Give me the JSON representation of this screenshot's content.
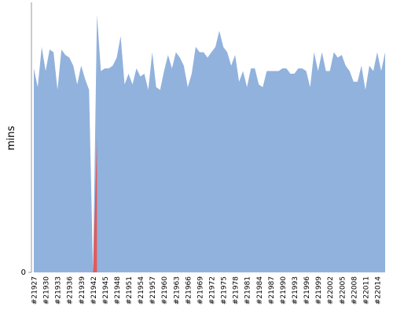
{
  "chart_data": {
    "type": "area",
    "y_label": "mins",
    "categories": [
      "#21927",
      null,
      null,
      "#21930",
      null,
      null,
      "#21933",
      null,
      null,
      "#21936",
      null,
      null,
      "#21939",
      null,
      null,
      "#21942",
      null,
      null,
      "#21945",
      null,
      null,
      "#21948",
      null,
      null,
      "#21951",
      null,
      null,
      "#21954",
      null,
      null,
      "#21957",
      null,
      null,
      "#21960",
      null,
      null,
      "#21963",
      null,
      null,
      "#21966",
      null,
      null,
      "#21969",
      null,
      null,
      "#21972",
      null,
      null,
      "#21975",
      null,
      null,
      "#21978",
      null,
      null,
      "#21981",
      null,
      null,
      "#21984",
      null,
      null,
      "#21987",
      null,
      null,
      "#21990",
      null,
      null,
      "#21993",
      null,
      null,
      "#21996",
      null,
      null,
      "#21999",
      null,
      null,
      "#22002",
      null,
      null,
      "#22005",
      null,
      null,
      "#22008",
      null,
      null,
      "#22011",
      null,
      null,
      "#22014",
      null,
      null
    ],
    "series": [
      {
        "color": "#91b2dc",
        "values": [
          76,
          69,
          84,
          75,
          83,
          82,
          68,
          83,
          81,
          80,
          77,
          70,
          77,
          72,
          68,
          0,
          96,
          75,
          76,
          76,
          77,
          80,
          88,
          70,
          74,
          70,
          76,
          73,
          74,
          68,
          82,
          69,
          68,
          75,
          81,
          76,
          82,
          80,
          77,
          69,
          74,
          84,
          82,
          82,
          80,
          82,
          84,
          90,
          84,
          82,
          77,
          81,
          71,
          75,
          69,
          76,
          76,
          70,
          69,
          75,
          75,
          75,
          75,
          76,
          76,
          74,
          74,
          76,
          76,
          75,
          69,
          82,
          75,
          82,
          75,
          75,
          82,
          80,
          81,
          77,
          75,
          71,
          71,
          77,
          68,
          77,
          75,
          82,
          75,
          82
        ]
      },
      {
        "color": "#e35a5a",
        "values": [
          null,
          null,
          null,
          null,
          null,
          null,
          null,
          null,
          null,
          null,
          null,
          null,
          null,
          null,
          null,
          0,
          50,
          null,
          null,
          null,
          null,
          null,
          null,
          null,
          null,
          null,
          null,
          null,
          null,
          null,
          null,
          null,
          null,
          null,
          null,
          null,
          null,
          null,
          null,
          null,
          null,
          null,
          null,
          null,
          null,
          null,
          null,
          null,
          null,
          null,
          null,
          null,
          null,
          null,
          null,
          null,
          null,
          null,
          null,
          null,
          null,
          null,
          null,
          null,
          null,
          null,
          null,
          null,
          null,
          null,
          null,
          null,
          null,
          null,
          null,
          null,
          null,
          null,
          null,
          null,
          null,
          null,
          null,
          null,
          null,
          null,
          null,
          null,
          null,
          null
        ]
      }
    ],
    "ylim": [
      0,
      100
    ],
    "yticks": [
      0
    ]
  }
}
